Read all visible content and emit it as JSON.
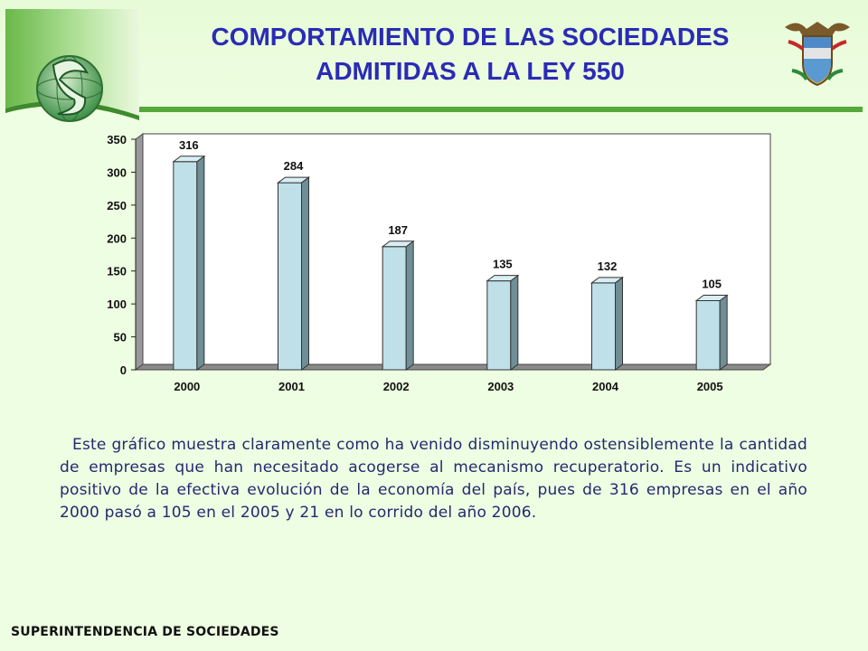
{
  "header": {
    "title_line1": "COMPORTAMIENTO DE LAS SOCIEDADES",
    "title_line2": "ADMITIDAS A LA LEY 550",
    "logo_icon": "supersociedades-logo-icon",
    "crest_icon": "colombia-coat-of-arms-icon",
    "accent_color": "#55a83a",
    "title_color": "#2b2bb5"
  },
  "chart_data": {
    "type": "bar",
    "categories": [
      "2000",
      "2001",
      "2002",
      "2003",
      "2004",
      "2005"
    ],
    "values": [
      316,
      284,
      187,
      135,
      132,
      105
    ],
    "data_labels": [
      "316",
      "284",
      "187",
      "135",
      "132",
      "105"
    ],
    "ylim": [
      0,
      350
    ],
    "yticks": [
      0,
      50,
      100,
      150,
      200,
      250,
      300,
      350
    ],
    "grid": false,
    "legend": "none",
    "style": "3d",
    "bar_color": "#bfe0e8",
    "title": "",
    "xlabel": "",
    "ylabel": ""
  },
  "body": {
    "paragraph": "Este gráfico muestra claramente como ha venido disminuyendo ostensiblemente la cantidad de empresas que han necesitado acogerse al mecanismo recuperatorio. Es un indicativo positivo de la efectiva evolución de la economía del país, pues de 316 empresas en el año 2000 pasó a 105 en el 2005 y 21 en lo corrido del año 2006."
  },
  "footer": {
    "text": "SUPERINTENDENCIA DE SOCIEDADES"
  }
}
